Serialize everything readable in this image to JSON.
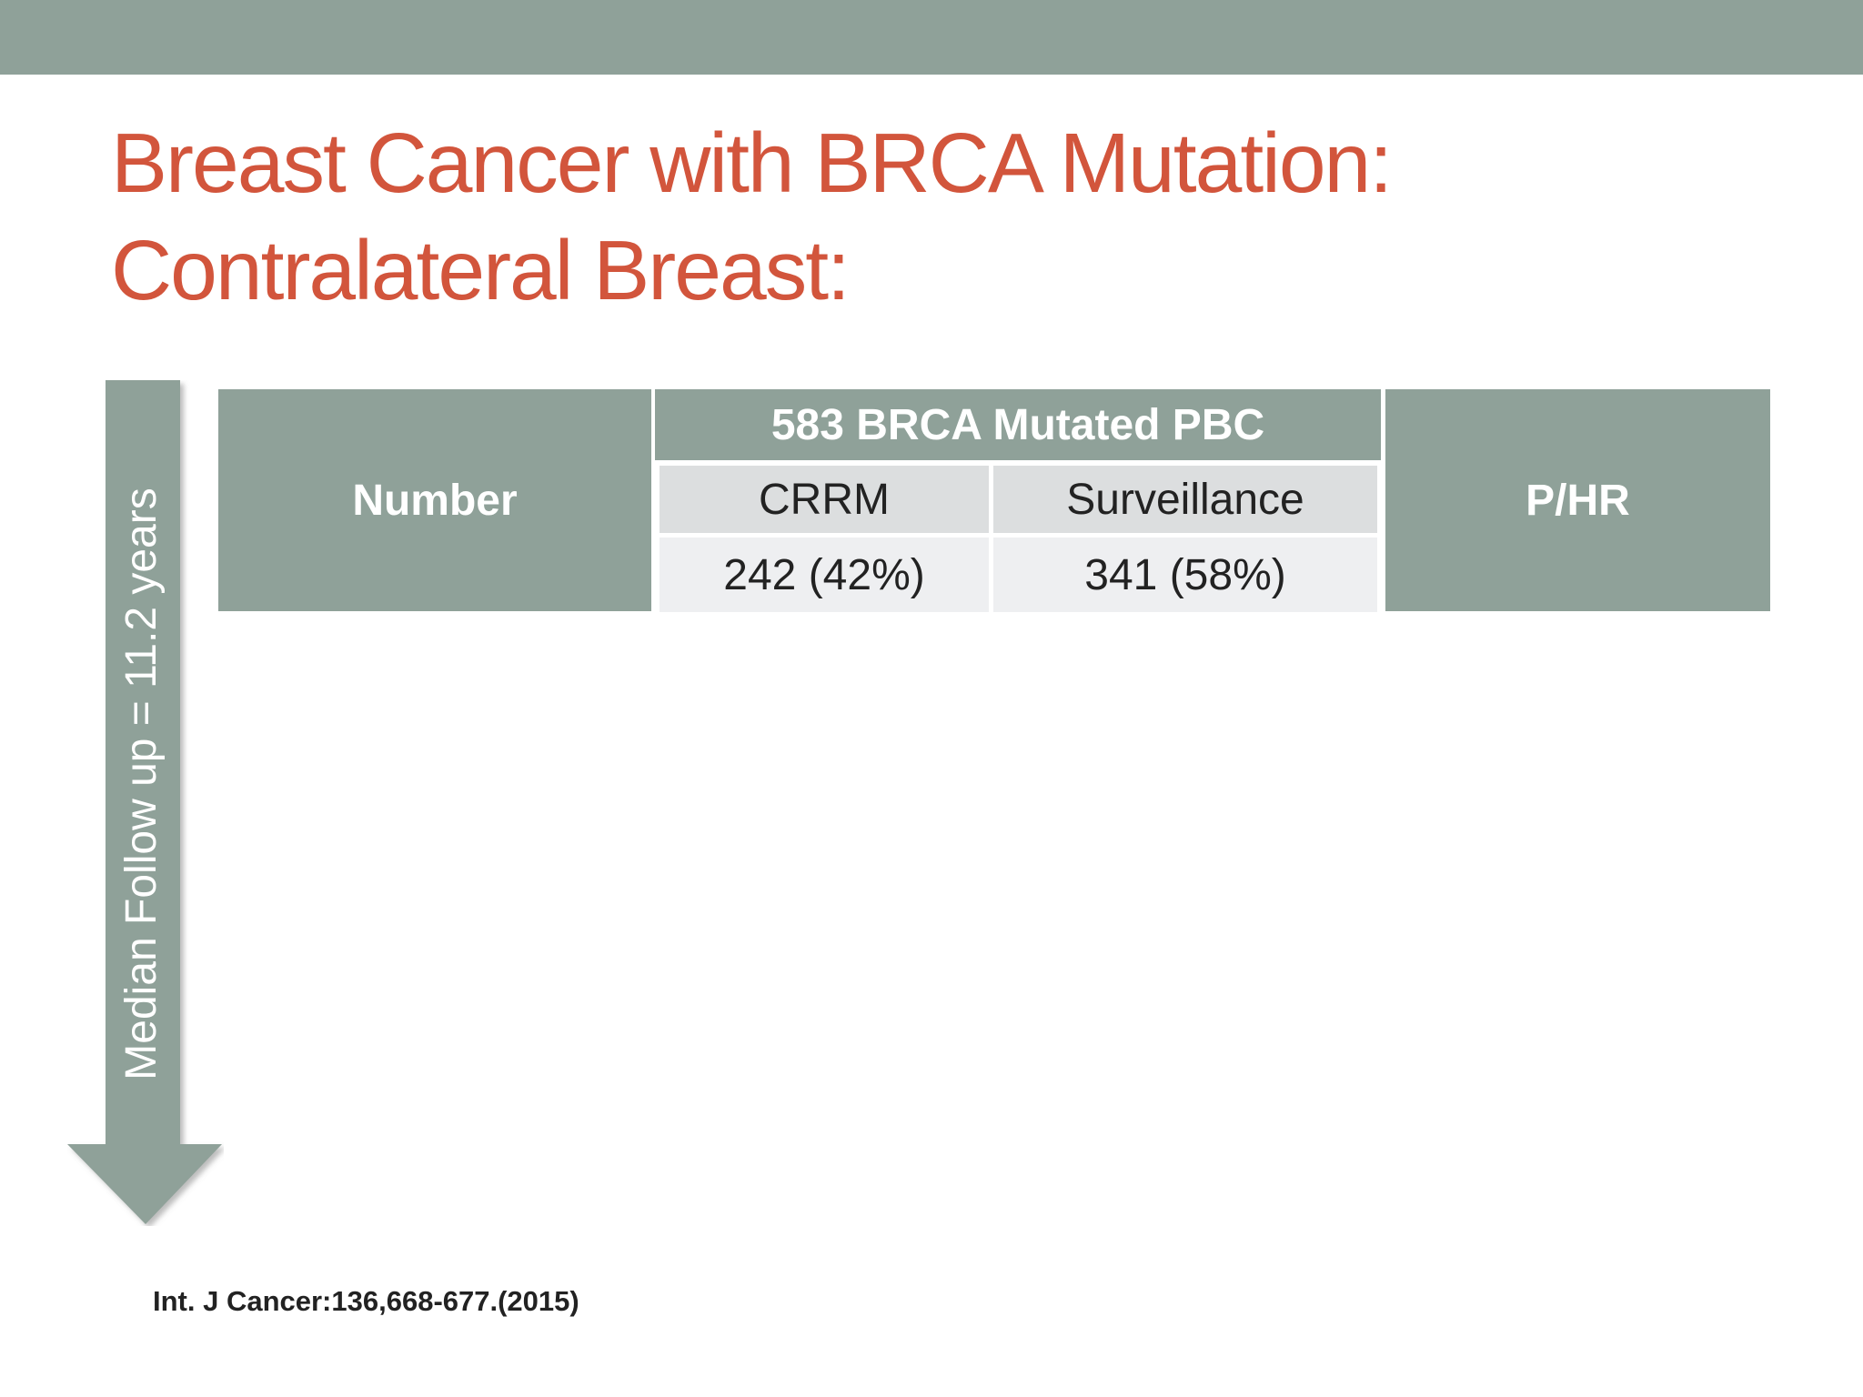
{
  "slide": {
    "title_line1": "Breast Cancer with BRCA Mutation:",
    "title_line2": "Contralateral Breast:",
    "arrow_label": "Median Follow up = 11.2 years",
    "citation": "Int. J Cancer:136,668-677.(2015)"
  },
  "table": {
    "col_number": "Number",
    "group_header": "583 BRCA Mutated PBC",
    "col_crrm": "CRRM",
    "col_surveillance": "Surveillance",
    "col_phr": "P/HR",
    "crrm_value": "242 (42%)",
    "surveillance_value": "341 (58%)"
  },
  "colors": {
    "bar": "#8fa199",
    "title": "#d2553c"
  }
}
